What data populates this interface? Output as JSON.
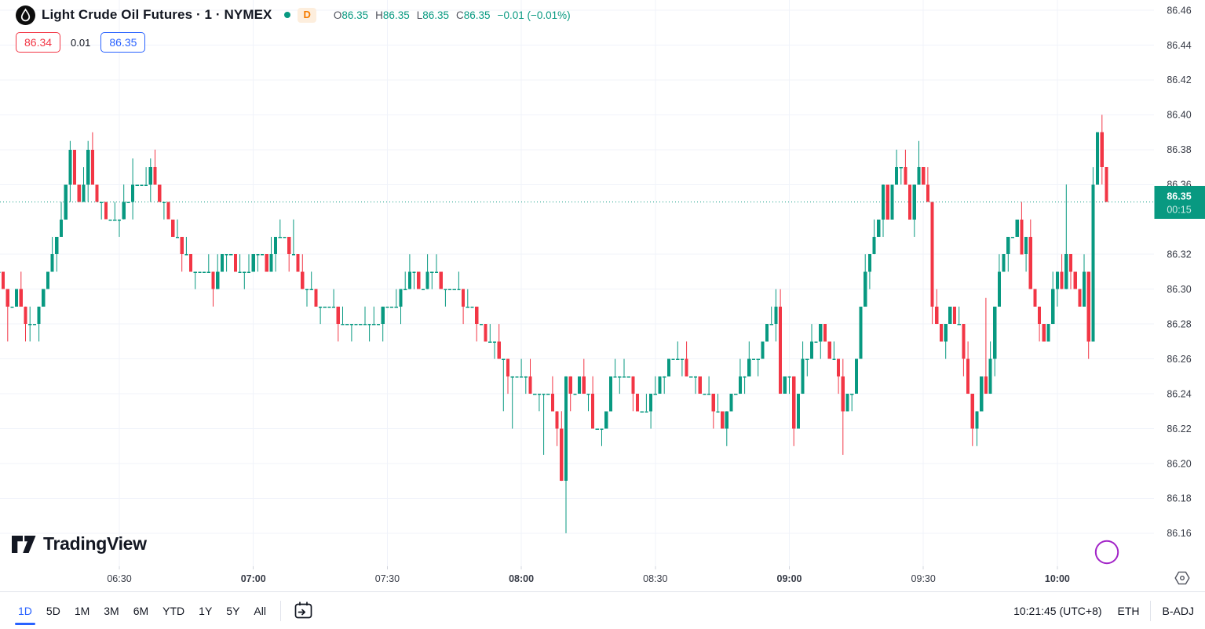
{
  "header": {
    "symbol_title": "Light Crude Oil Futures · 1 · NYMEX",
    "market_status": "open",
    "data_mode_badge": "D",
    "ohlc": {
      "o_label": "O",
      "o": "86.35",
      "h_label": "H",
      "h": "86.35",
      "l_label": "L",
      "l": "86.35",
      "c_label": "C",
      "c": "86.35",
      "change": "−0.01 (−0.01%)"
    },
    "bid": "86.34",
    "spread": "0.01",
    "ask": "86.35"
  },
  "watermark_logo": "TradingView",
  "price_axis": {
    "ticks": [
      "86.46",
      "86.44",
      "86.42",
      "86.40",
      "86.38",
      "86.36",
      "86.32",
      "86.30",
      "86.28",
      "86.26",
      "86.24",
      "86.22",
      "86.20",
      "86.18",
      "86.16"
    ],
    "last_price_label": "86.35",
    "countdown": "00:15"
  },
  "time_axis": {
    "labels": [
      "06:30",
      "07:00",
      "07:30",
      "08:00",
      "08:30",
      "09:00",
      "09:30",
      "10:00"
    ],
    "bold_labels": [
      "07:00",
      "08:00",
      "09:00",
      "10:00"
    ]
  },
  "toolbar": {
    "ranges": [
      {
        "label": "1D",
        "active": true
      },
      {
        "label": "5D",
        "active": false
      },
      {
        "label": "1M",
        "active": false
      },
      {
        "label": "3M",
        "active": false
      },
      {
        "label": "6M",
        "active": false
      },
      {
        "label": "YTD",
        "active": false
      },
      {
        "label": "1Y",
        "active": false
      },
      {
        "label": "5Y",
        "active": false
      },
      {
        "label": "All",
        "active": false
      }
    ],
    "clock": "10:21:45 (UTC+8)",
    "session": "ETH",
    "adjustment": "B-ADJ"
  },
  "chart_data": {
    "type": "candlestick",
    "title": "Light Crude Oil Futures",
    "exchange": "NYMEX",
    "interval_minutes": 1,
    "colors": {
      "up": "#089981",
      "down": "#f23645",
      "grid": "#f0f3fa",
      "axis_text": "#363a45",
      "price_line": "#089981"
    },
    "current_price_line": 86.35,
    "last_price": 86.35,
    "countdown": "00:15",
    "session_high": 86.4,
    "session_low": 86.16,
    "y_axis": {
      "min": 86.15,
      "max": 86.47,
      "tick_step": 0.02,
      "ticks": [
        86.46,
        86.44,
        86.42,
        86.4,
        86.38,
        86.36,
        86.32,
        86.3,
        86.28,
        86.26,
        86.24,
        86.22,
        86.2,
        86.18,
        86.16
      ]
    },
    "x_axis": {
      "tick_times": [
        "06:30",
        "07:00",
        "07:30",
        "08:00",
        "08:30",
        "09:00",
        "09:30",
        "10:00"
      ],
      "bold_times": [
        "07:00",
        "08:00",
        "09:00",
        "10:00"
      ]
    },
    "series_start_time": "06:03",
    "price_path_minute_close": [
      [
        0,
        86.305
      ],
      [
        2,
        86.285
      ],
      [
        4,
        86.3
      ],
      [
        7,
        86.275
      ],
      [
        9,
        86.29
      ],
      [
        11,
        86.31
      ],
      [
        13,
        86.33
      ],
      [
        15,
        86.355
      ],
      [
        16,
        86.375
      ],
      [
        17,
        86.36
      ],
      [
        18,
        86.345
      ],
      [
        20,
        86.375
      ],
      [
        22,
        86.35
      ],
      [
        24,
        86.34
      ],
      [
        26,
        86.335
      ],
      [
        28,
        86.35
      ],
      [
        30,
        86.36
      ],
      [
        32,
        86.355
      ],
      [
        34,
        86.365
      ],
      [
        36,
        86.35
      ],
      [
        38,
        86.34
      ],
      [
        40,
        86.325
      ],
      [
        42,
        86.315
      ],
      [
        44,
        86.305
      ],
      [
        46,
        86.31
      ],
      [
        48,
        86.3
      ],
      [
        50,
        86.315
      ],
      [
        52,
        86.32
      ],
      [
        54,
        86.305
      ],
      [
        56,
        86.31
      ],
      [
        58,
        86.32
      ],
      [
        60,
        86.31
      ],
      [
        62,
        86.325
      ],
      [
        64,
        86.33
      ],
      [
        66,
        86.32
      ],
      [
        68,
        86.3
      ],
      [
        70,
        86.295
      ],
      [
        72,
        86.29
      ],
      [
        75,
        86.285
      ],
      [
        78,
        86.28
      ],
      [
        80,
        86.275
      ],
      [
        83,
        86.28
      ],
      [
        86,
        86.285
      ],
      [
        89,
        86.29
      ],
      [
        92,
        86.31
      ],
      [
        94,
        86.3
      ],
      [
        96,
        86.305
      ],
      [
        98,
        86.31
      ],
      [
        100,
        86.295
      ],
      [
        103,
        86.295
      ],
      [
        105,
        86.29
      ],
      [
        107,
        86.28
      ],
      [
        109,
        86.27
      ],
      [
        111,
        86.265
      ],
      [
        113,
        86.255
      ],
      [
        115,
        86.245
      ],
      [
        117,
        86.25
      ],
      [
        119,
        86.24
      ],
      [
        121,
        86.235
      ],
      [
        123,
        86.24
      ],
      [
        125,
        86.22
      ],
      [
        126,
        86.19
      ],
      [
        127,
        86.25
      ],
      [
        128,
        86.24
      ],
      [
        130,
        86.245
      ],
      [
        132,
        86.24
      ],
      [
        133,
        86.22
      ],
      [
        134,
        86.215
      ],
      [
        135,
        86.22
      ],
      [
        137,
        86.245
      ],
      [
        139,
        86.25
      ],
      [
        141,
        86.25
      ],
      [
        142,
        86.24
      ],
      [
        144,
        86.225
      ],
      [
        146,
        86.235
      ],
      [
        148,
        86.245
      ],
      [
        150,
        86.255
      ],
      [
        152,
        86.26
      ],
      [
        154,
        86.25
      ],
      [
        156,
        86.245
      ],
      [
        158,
        86.24
      ],
      [
        160,
        86.23
      ],
      [
        162,
        86.22
      ],
      [
        164,
        86.235
      ],
      [
        166,
        86.245
      ],
      [
        168,
        86.255
      ],
      [
        170,
        86.26
      ],
      [
        172,
        86.275
      ],
      [
        174,
        86.29
      ],
      [
        175,
        86.24
      ],
      [
        177,
        86.25
      ],
      [
        178,
        86.22
      ],
      [
        179,
        86.24
      ],
      [
        180,
        86.255
      ],
      [
        182,
        86.27
      ],
      [
        184,
        86.275
      ],
      [
        186,
        86.26
      ],
      [
        188,
        86.25
      ],
      [
        189,
        86.23
      ],
      [
        191,
        86.24
      ],
      [
        192,
        86.26
      ],
      [
        193,
        86.29
      ],
      [
        194,
        86.31
      ],
      [
        196,
        86.33
      ],
      [
        198,
        86.355
      ],
      [
        199,
        86.34
      ],
      [
        200,
        86.36
      ],
      [
        202,
        86.37
      ],
      [
        203,
        86.355
      ],
      [
        204,
        86.34
      ],
      [
        206,
        86.37
      ],
      [
        207,
        86.36
      ],
      [
        208,
        86.35
      ],
      [
        209,
        86.29
      ],
      [
        210,
        86.275
      ],
      [
        211,
        86.27
      ],
      [
        213,
        86.285
      ],
      [
        215,
        86.28
      ],
      [
        216,
        86.26
      ],
      [
        217,
        86.24
      ],
      [
        218,
        86.22
      ],
      [
        219,
        86.23
      ],
      [
        220,
        86.245
      ],
      [
        221,
        86.24
      ],
      [
        222,
        86.255
      ],
      [
        223,
        86.29
      ],
      [
        224,
        86.31
      ],
      [
        225,
        86.32
      ],
      [
        226,
        86.33
      ],
      [
        227,
        86.325
      ],
      [
        228,
        86.335
      ],
      [
        229,
        86.32
      ],
      [
        230,
        86.33
      ],
      [
        231,
        86.3
      ],
      [
        232,
        86.29
      ],
      [
        233,
        86.275
      ],
      [
        234,
        86.27
      ],
      [
        235,
        86.275
      ],
      [
        236,
        86.3
      ],
      [
        237,
        86.31
      ],
      [
        238,
        86.3
      ],
      [
        239,
        86.315
      ],
      [
        240,
        86.31
      ],
      [
        241,
        86.3
      ],
      [
        242,
        86.29
      ],
      [
        243,
        86.31
      ],
      [
        244,
        86.27
      ],
      [
        245,
        86.355
      ],
      [
        246,
        86.39
      ],
      [
        247,
        86.37
      ],
      [
        248,
        86.35
      ]
    ],
    "wick_overrides": [
      [
        2,
        "low",
        86.27
      ],
      [
        7,
        "low",
        86.27
      ],
      [
        16,
        "high",
        86.385
      ],
      [
        20,
        "high",
        86.385
      ],
      [
        30,
        "high",
        86.375
      ],
      [
        34,
        "high",
        86.375
      ],
      [
        66,
        "high",
        86.34
      ],
      [
        92,
        "high",
        86.32
      ],
      [
        113,
        "low",
        86.23
      ],
      [
        115,
        "low",
        86.22
      ],
      [
        122,
        "low",
        86.205
      ],
      [
        127,
        "low",
        86.16
      ],
      [
        133,
        "high",
        86.25
      ],
      [
        174,
        "high",
        86.3
      ],
      [
        178,
        "low",
        86.21
      ],
      [
        189,
        "low",
        86.205
      ],
      [
        206,
        "high",
        86.385
      ],
      [
        218,
        "low",
        86.21
      ],
      [
        221,
        "high",
        86.295
      ],
      [
        239,
        "high",
        86.36
      ],
      [
        247,
        "high",
        86.4
      ]
    ]
  }
}
